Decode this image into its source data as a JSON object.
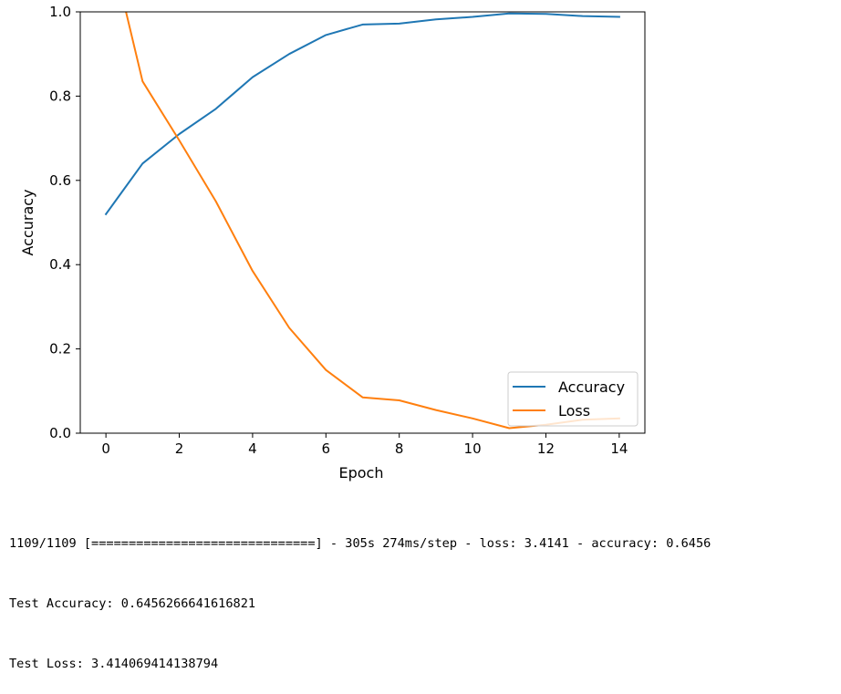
{
  "chart_data": {
    "type": "line",
    "xlabel": "Epoch",
    "ylabel": "Accuracy",
    "xlim": [
      -0.7,
      14.7
    ],
    "ylim": [
      0,
      1.0
    ],
    "xticks": [
      "0",
      "2",
      "4",
      "6",
      "8",
      "10",
      "12",
      "14"
    ],
    "yticks": [
      "0.0",
      "0.2",
      "0.4",
      "0.6",
      "0.8",
      "1.0"
    ],
    "grid": false,
    "legend_position": "lower right",
    "x": [
      0,
      1,
      2,
      3,
      4,
      5,
      6,
      7,
      8,
      9,
      10,
      11,
      12,
      13,
      14
    ],
    "series": [
      {
        "name": "Accuracy",
        "color": "#1f77b4",
        "values": [
          0.52,
          0.64,
          0.71,
          0.77,
          0.845,
          0.9,
          0.945,
          0.97,
          0.972,
          0.982,
          0.988,
          0.996,
          0.995,
          0.99,
          0.988
        ]
      },
      {
        "name": "Loss",
        "color": "#ff7f0e",
        "values": [
          1.2,
          0.835,
          0.695,
          0.55,
          0.385,
          0.25,
          0.15,
          0.085,
          0.078,
          0.055,
          0.035,
          0.012,
          0.02,
          0.032,
          0.035
        ]
      }
    ]
  },
  "console": {
    "progress_line": "1109/1109 [==============================] - 305s 274ms/step - loss: 3.4141 - accuracy: 0.6456",
    "test_accuracy_line": "Test Accuracy: 0.6456266641616821",
    "test_loss_line": "Test Loss: 3.414069414138794"
  }
}
